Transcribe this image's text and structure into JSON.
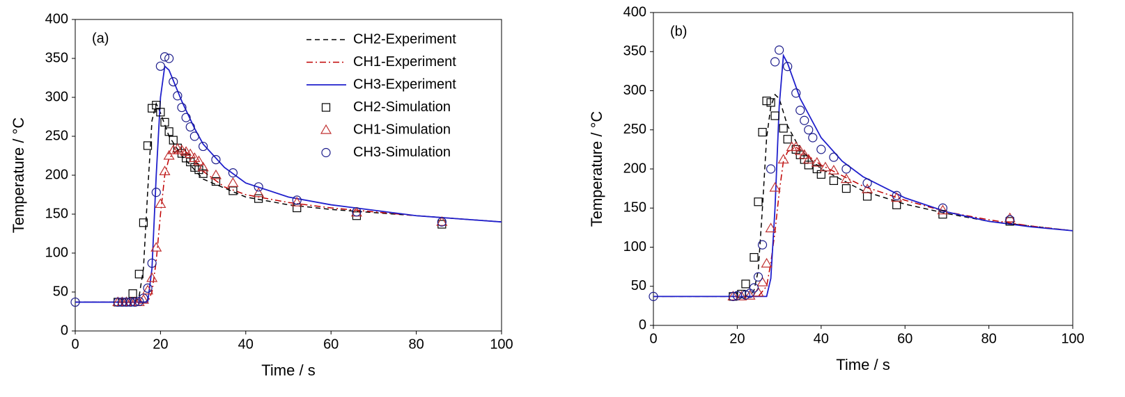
{
  "chart_data": [
    {
      "type": "line",
      "annotation": "(a)",
      "xlabel": "Time / s",
      "ylabel": "Temperature / °C",
      "xlim": [
        0,
        100
      ],
      "xticks": [
        0,
        20,
        40,
        60,
        80,
        100
      ],
      "ylim": [
        0,
        400
      ],
      "yticks": [
        0,
        50,
        100,
        150,
        200,
        250,
        300,
        350,
        400
      ],
      "legend": "upper right",
      "series": [
        {
          "name": "CH2-Experiment",
          "color": "#000000",
          "style": "dashed",
          "x": [
            0,
            14,
            15,
            16,
            17,
            18,
            19,
            20,
            22,
            25,
            30,
            40,
            50,
            60,
            70,
            80,
            90,
            100
          ],
          "values": [
            37,
            37,
            45,
            80,
            180,
            270,
            292,
            280,
            250,
            225,
            195,
            172,
            162,
            156,
            152,
            148,
            144,
            140
          ]
        },
        {
          "name": "CH1-Experiment",
          "color": "#c00000",
          "style": "dashdot",
          "x": [
            0,
            17,
            18,
            19,
            20,
            21,
            22,
            24,
            26,
            28,
            30,
            35,
            40,
            50,
            60,
            70,
            80,
            90,
            100
          ],
          "values": [
            37,
            37,
            50,
            90,
            150,
            200,
            222,
            232,
            230,
            220,
            205,
            185,
            175,
            165,
            158,
            153,
            148,
            144,
            140
          ]
        },
        {
          "name": "CH3-Experiment",
          "color": "#1f1fcc",
          "style": "solid",
          "x": [
            0,
            17,
            18,
            19,
            20,
            21,
            22,
            25,
            28,
            30,
            35,
            40,
            50,
            60,
            70,
            80,
            90,
            100
          ],
          "values": [
            37,
            37,
            80,
            200,
            300,
            340,
            335,
            295,
            260,
            240,
            210,
            190,
            172,
            162,
            155,
            148,
            144,
            140
          ]
        },
        {
          "name": "CH2-Simulation",
          "color": "#000000",
          "marker": "square",
          "x": [
            10,
            11,
            12,
            13.5,
            15,
            16,
            17,
            18,
            19,
            20,
            21,
            22,
            23,
            24,
            25,
            26,
            27,
            28,
            29,
            30,
            33,
            37,
            43,
            52,
            66,
            86
          ],
          "values": [
            37,
            37,
            37,
            48,
            73,
            139,
            238,
            286,
            290,
            281,
            268,
            256,
            245,
            235,
            228,
            222,
            217,
            210,
            207,
            202,
            192,
            180,
            170,
            158,
            148,
            137
          ]
        },
        {
          "name": "CH1-Simulation",
          "color": "#c03030",
          "marker": "triangle",
          "x": [
            10,
            11,
            12,
            13,
            14,
            15,
            16,
            17,
            18,
            19,
            20,
            21,
            22,
            23,
            24,
            25,
            26,
            27,
            28,
            29,
            30,
            33,
            37,
            43,
            52,
            66,
            86
          ],
          "values": [
            37,
            37,
            37,
            37,
            37,
            37,
            40,
            52,
            68,
            107,
            163,
            205,
            225,
            232,
            234,
            232,
            230,
            227,
            222,
            218,
            210,
            200,
            190,
            177,
            165,
            152,
            140
          ]
        },
        {
          "name": "CH3-Simulation",
          "color": "#1a1a8a",
          "marker": "circle",
          "x": [
            0,
            10,
            11,
            12,
            13,
            14,
            15,
            16,
            17,
            18,
            19,
            20,
            21,
            22,
            23,
            24,
            25,
            26,
            27,
            28,
            30,
            33,
            37,
            43,
            52,
            66,
            86
          ],
          "values": [
            37,
            37,
            37,
            37,
            37,
            37,
            38,
            42,
            55,
            87,
            178,
            340,
            352,
            350,
            320,
            302,
            287,
            274,
            262,
            250,
            237,
            220,
            203,
            185,
            168,
            153,
            140
          ]
        }
      ]
    },
    {
      "type": "line",
      "annotation": "(b)",
      "xlabel": "Time / s",
      "ylabel": "Temperature / °C",
      "xlim": [
        0,
        100
      ],
      "xticks": [
        0,
        20,
        40,
        60,
        80,
        100
      ],
      "ylim": [
        0,
        400
      ],
      "yticks": [
        0,
        50,
        100,
        150,
        200,
        250,
        300,
        350,
        400
      ],
      "series": [
        {
          "color": "#000000",
          "style": "dashed",
          "x": [
            0,
            23,
            24,
            25,
            26,
            27,
            28,
            29,
            30,
            32,
            35,
            40,
            50,
            60,
            70,
            80,
            90,
            100
          ],
          "values": [
            37,
            37,
            45,
            70,
            150,
            240,
            280,
            295,
            290,
            255,
            225,
            200,
            172,
            155,
            143,
            133,
            127,
            121
          ]
        },
        {
          "color": "#c00000",
          "style": "dashdot",
          "x": [
            0,
            25,
            27,
            28,
            29,
            30,
            31,
            32,
            34,
            36,
            40,
            50,
            60,
            70,
            80,
            90,
            100
          ],
          "values": [
            37,
            37,
            50,
            80,
            120,
            170,
            210,
            222,
            228,
            220,
            205,
            178,
            160,
            145,
            135,
            127,
            121
          ]
        },
        {
          "color": "#1f1fcc",
          "style": "solid",
          "x": [
            0,
            27,
            28,
            29,
            30,
            31,
            32,
            35,
            40,
            45,
            50,
            60,
            70,
            80,
            90,
            100
          ],
          "values": [
            37,
            37,
            60,
            150,
            280,
            345,
            335,
            290,
            240,
            210,
            190,
            163,
            145,
            133,
            126,
            121
          ]
        },
        {
          "color": "#000000",
          "marker": "square",
          "x": [
            19,
            21,
            22,
            24,
            25,
            26,
            27,
            28,
            29,
            31,
            32,
            34,
            35,
            36,
            37,
            39,
            40,
            43,
            46,
            51,
            58,
            69,
            85
          ],
          "values": [
            37,
            40,
            53,
            87,
            158,
            247,
            287,
            285,
            268,
            252,
            238,
            225,
            218,
            212,
            205,
            200,
            193,
            185,
            175,
            165,
            154,
            142,
            133
          ]
        },
        {
          "color": "#c03030",
          "marker": "triangle",
          "x": [
            19,
            21,
            23,
            25,
            26,
            27,
            28,
            29,
            31,
            33,
            34,
            35,
            36,
            37,
            39,
            41,
            43,
            46,
            51,
            58,
            69,
            85
          ],
          "values": [
            37,
            37,
            38,
            42,
            55,
            79,
            124,
            176,
            212,
            228,
            228,
            223,
            218,
            212,
            208,
            202,
            198,
            187,
            174,
            163,
            147,
            137
          ]
        },
        {
          "color": "#1a1a8a",
          "marker": "circle",
          "x": [
            0,
            19,
            20,
            22,
            23,
            24,
            25,
            26,
            28,
            29,
            30,
            32,
            34,
            35,
            36,
            37,
            38,
            40,
            43,
            46,
            51,
            58,
            69,
            85
          ],
          "values": [
            37,
            37,
            38,
            39,
            41,
            48,
            62,
            103,
            200,
            337,
            352,
            331,
            297,
            275,
            262,
            250,
            240,
            225,
            215,
            200,
            182,
            166,
            150,
            135
          ]
        }
      ]
    }
  ]
}
